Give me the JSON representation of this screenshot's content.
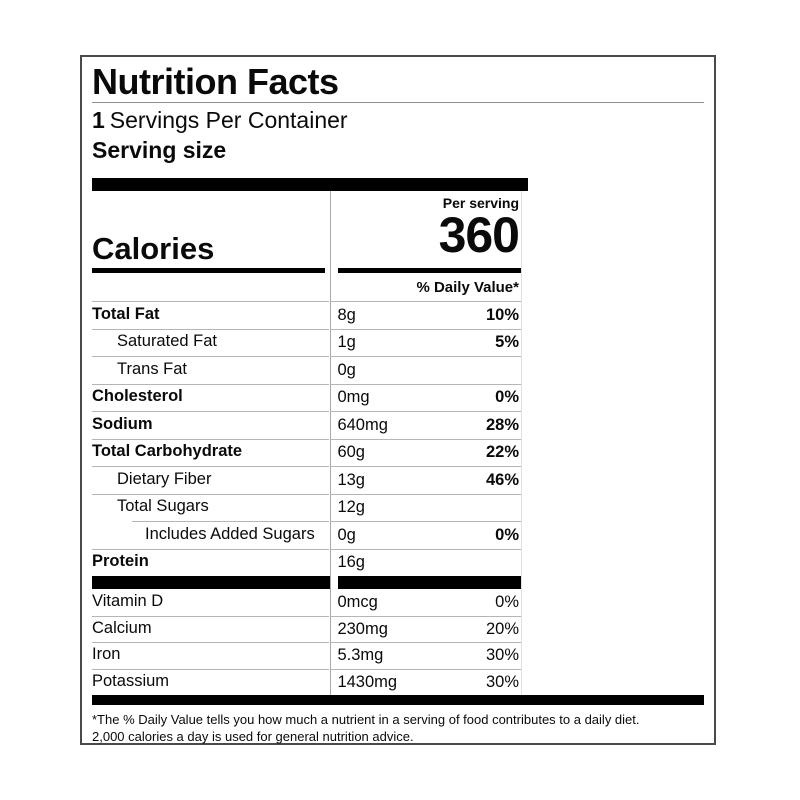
{
  "label": {
    "title": "Nutrition Facts",
    "servings_count": "1",
    "servings_text": "Servings Per Container",
    "serving_size_label": "Serving size",
    "calories": {
      "label": "Calories",
      "per_serving": "Per serving",
      "value": "360"
    },
    "daily_value_header": "% Daily Value*",
    "nutrients": [
      {
        "name": "Total Fat",
        "amount": "8g",
        "dv": "10%"
      },
      {
        "name": "Saturated Fat",
        "amount": "1g",
        "dv": "5%"
      },
      {
        "name": "Trans Fat",
        "amount": "0g",
        "dv": ""
      },
      {
        "name": "Cholesterol",
        "amount": "0mg",
        "dv": "0%"
      },
      {
        "name": "Sodium",
        "amount": "640mg",
        "dv": "28%"
      },
      {
        "name": "Total Carbohydrate",
        "amount": "60g",
        "dv": "22%"
      },
      {
        "name": "Dietary Fiber",
        "amount": "13g",
        "dv": "46%"
      },
      {
        "name": "Total Sugars",
        "amount": "12g",
        "dv": ""
      },
      {
        "name": "Includes Added Sugars",
        "amount": "0g",
        "dv": "0%"
      },
      {
        "name": "Protein",
        "amount": "16g",
        "dv": ""
      }
    ],
    "minerals": [
      {
        "name": "Vitamin D",
        "amount": "0mcg",
        "dv": "0%"
      },
      {
        "name": "Calcium",
        "amount": "230mg",
        "dv": "20%"
      },
      {
        "name": "Iron",
        "amount": "5.3mg",
        "dv": "30%"
      },
      {
        "name": "Potassium",
        "amount": "1430mg",
        "dv": "30%"
      }
    ],
    "footnote_line1": "*The % Daily Value tells you how much a nutrient in a serving of food contributes to a daily diet.",
    "footnote_line2": "2,000 calories a day is used for general nutrition advice."
  },
  "colors": {
    "text": "#0a0a0a",
    "bar": "#000000",
    "divider": "#b5b5b5",
    "border": "#4a4a4a"
  }
}
